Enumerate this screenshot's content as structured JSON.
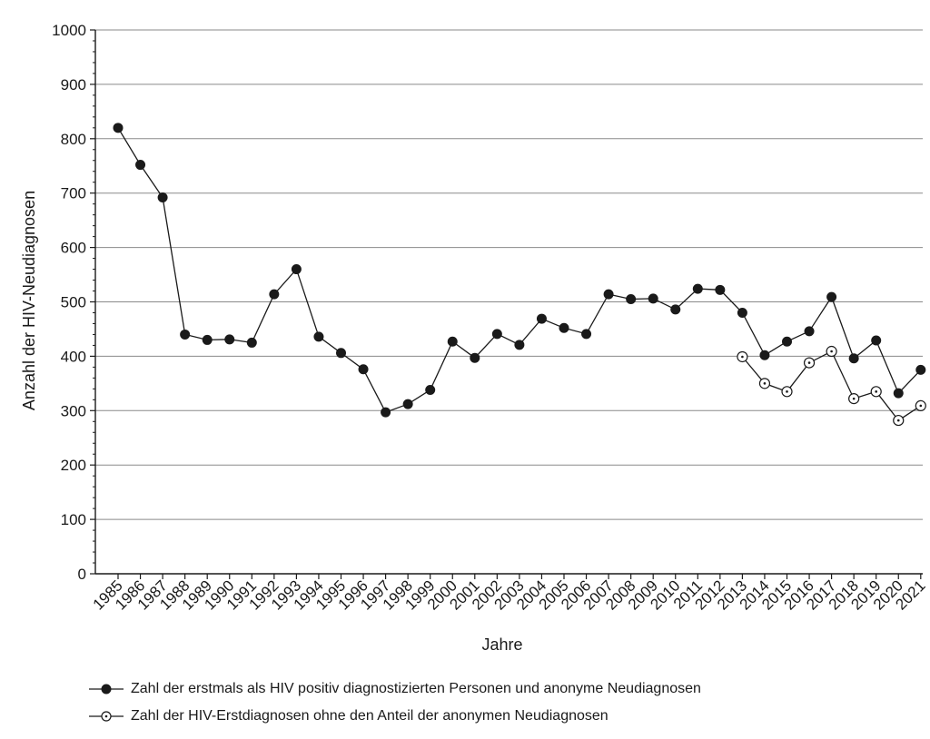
{
  "chart_data": {
    "type": "line",
    "x": [
      1985,
      1986,
      1987,
      1988,
      1989,
      1990,
      1991,
      1992,
      1993,
      1994,
      1995,
      1996,
      1997,
      1998,
      1999,
      2000,
      2001,
      2002,
      2003,
      2004,
      2005,
      2006,
      2007,
      2008,
      2009,
      2010,
      2011,
      2012,
      2013,
      2014,
      2015,
      2016,
      2017,
      2018,
      2019,
      2020,
      2021
    ],
    "xlabel": "Jahre",
    "ylabel": "Anzahl der HIV-Neudiagnosen",
    "ylim": [
      0,
      1000
    ],
    "yticks": [
      0,
      100,
      200,
      300,
      400,
      500,
      600,
      700,
      800,
      900,
      1000
    ],
    "grid": true,
    "legend_position": "bottom",
    "series": [
      {
        "name": "Zahl der erstmals als HIV positiv diagnostizierten Personen und anonyme Neudiagnosen",
        "marker": "filled-circle",
        "color": "#1a1a1a",
        "values": [
          820,
          752,
          692,
          440,
          430,
          431,
          425,
          514,
          560,
          436,
          406,
          376,
          297,
          312,
          338,
          427,
          397,
          441,
          421,
          469,
          452,
          441,
          514,
          505,
          506,
          486,
          524,
          522,
          480,
          402,
          427,
          446,
          509,
          396,
          429,
          332,
          375
        ]
      },
      {
        "name": "Zahl der HIV-Erstdiagnosen ohne den Anteil der anonymen Neudiagnosen",
        "marker": "open-circle",
        "color": "#1a1a1a",
        "values": [
          null,
          null,
          null,
          null,
          null,
          null,
          null,
          null,
          null,
          null,
          null,
          null,
          null,
          null,
          null,
          null,
          null,
          null,
          null,
          null,
          null,
          null,
          null,
          null,
          null,
          null,
          null,
          null,
          399,
          350,
          335,
          388,
          409,
          322,
          335,
          282,
          309
        ]
      }
    ]
  }
}
